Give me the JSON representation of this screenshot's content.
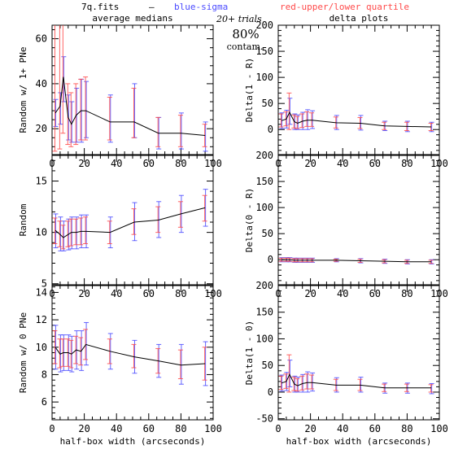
{
  "header": {
    "filename": "7q.fits",
    "dash": "—",
    "blue_label": "blue-sigma",
    "red_label": "red-upper/lower quartile",
    "trials": "20+ trials",
    "percent": "80%",
    "contam": "contam."
  },
  "colors": {
    "blue": "#4a4aff",
    "red": "#ff4a4a",
    "line": "#000000",
    "purple": "#9a4ad0"
  },
  "chart_data": [
    {
      "type": "line",
      "id": "p00",
      "title": "average medians",
      "xlabel": "",
      "ylabel": "Random w/ 1+ PNe",
      "xlim": [
        0,
        100
      ],
      "ylim": [
        8.5,
        66
      ],
      "xticks": [
        0,
        20,
        40,
        60,
        80,
        100
      ],
      "yticks": [
        20,
        40,
        60
      ],
      "x": [
        2,
        5,
        7,
        10,
        12,
        15,
        18,
        21,
        36,
        51,
        66,
        80,
        95
      ],
      "y": [
        27,
        30,
        43,
        25,
        22,
        26,
        28,
        28,
        23,
        23,
        18,
        18,
        17
      ],
      "blue": [
        [
          21,
          33
        ],
        [
          22,
          36
        ],
        [
          32,
          52
        ],
        [
          15,
          35
        ],
        [
          14,
          32
        ],
        [
          14,
          38
        ],
        [
          14,
          42
        ],
        [
          16,
          41
        ],
        [
          14,
          35
        ],
        [
          16,
          40
        ],
        [
          11,
          25
        ],
        [
          11,
          27
        ],
        [
          10,
          23
        ]
      ],
      "red": [
        [
          10,
          66
        ],
        [
          11,
          66
        ],
        [
          18,
          66
        ],
        [
          13,
          40
        ],
        [
          12,
          36
        ],
        [
          13,
          40
        ],
        [
          15,
          42
        ],
        [
          15,
          43
        ],
        [
          15,
          34
        ],
        [
          16,
          38
        ],
        [
          12,
          25
        ],
        [
          12,
          26
        ],
        [
          12,
          22
        ]
      ]
    },
    {
      "type": "line",
      "id": "p10",
      "title": "",
      "xlabel": "",
      "ylabel": "Random",
      "xlim": [
        0,
        100
      ],
      "ylim": [
        4.9,
        17.5
      ],
      "xticks": [
        0,
        20,
        40,
        60,
        80,
        100
      ],
      "yticks": [
        5,
        10,
        15
      ],
      "x": [
        2,
        5,
        7,
        10,
        12,
        15,
        18,
        21,
        36,
        51,
        66,
        80,
        95
      ],
      "y": [
        10.2,
        9.8,
        9.5,
        9.8,
        10.0,
        10.0,
        10.1,
        10.1,
        10.0,
        11.0,
        11.2,
        11.8,
        12.4
      ],
      "blue": [
        [
          8.5,
          11.8
        ],
        [
          8.2,
          11.5
        ],
        [
          8.2,
          11.1
        ],
        [
          8.3,
          11.3
        ],
        [
          8.4,
          11.5
        ],
        [
          8.4,
          11.5
        ],
        [
          8.5,
          11.7
        ],
        [
          8.5,
          11.7
        ],
        [
          8.5,
          11.5
        ],
        [
          9.2,
          12.9
        ],
        [
          9.5,
          13.0
        ],
        [
          10.0,
          13.6
        ],
        [
          10.6,
          14.2
        ]
      ],
      "red": [
        [
          8.9,
          11.4
        ],
        [
          8.6,
          11.1
        ],
        [
          8.4,
          10.7
        ],
        [
          8.6,
          11.1
        ],
        [
          8.7,
          11.3
        ],
        [
          8.8,
          11.3
        ],
        [
          8.8,
          11.4
        ],
        [
          8.9,
          11.5
        ],
        [
          8.9,
          11.1
        ],
        [
          9.8,
          12.3
        ],
        [
          10.0,
          12.5
        ],
        [
          10.5,
          13.0
        ],
        [
          11.1,
          13.6
        ]
      ]
    },
    {
      "type": "line",
      "id": "p20",
      "title": "",
      "xlabel": "half-box width (arcseconds)",
      "ylabel": "Random w/ 0 PNe",
      "xlim": [
        0,
        100
      ],
      "ylim": [
        4.7,
        14.5
      ],
      "xticks": [
        0,
        20,
        40,
        60,
        80,
        100
      ],
      "yticks": [
        6,
        8,
        10,
        12,
        14
      ],
      "x": [
        2,
        5,
        7,
        10,
        12,
        15,
        18,
        21,
        36,
        51,
        66,
        80,
        95
      ],
      "y": [
        10.0,
        9.5,
        9.6,
        9.6,
        9.5,
        9.8,
        9.7,
        10.2,
        9.7,
        9.3,
        9.0,
        8.7,
        8.8
      ],
      "blue": [
        [
          8.4,
          11.6
        ],
        [
          8.2,
          10.9
        ],
        [
          8.3,
          10.9
        ],
        [
          8.3,
          10.9
        ],
        [
          8.2,
          10.8
        ],
        [
          8.4,
          11.2
        ],
        [
          8.3,
          11.2
        ],
        [
          8.7,
          11.8
        ],
        [
          8.4,
          11.0
        ],
        [
          8.1,
          10.5
        ],
        [
          7.8,
          10.2
        ],
        [
          7.3,
          10.2
        ],
        [
          7.2,
          10.4
        ]
      ],
      "red": [
        [
          8.8,
          11.2
        ],
        [
          8.5,
          10.6
        ],
        [
          8.6,
          10.6
        ],
        [
          8.6,
          10.6
        ],
        [
          8.5,
          10.5
        ],
        [
          8.8,
          10.8
        ],
        [
          8.7,
          10.7
        ],
        [
          9.1,
          11.3
        ],
        [
          8.8,
          10.6
        ],
        [
          8.5,
          10.2
        ],
        [
          8.1,
          9.9
        ],
        [
          7.7,
          9.8
        ],
        [
          7.6,
          10.0
        ]
      ]
    },
    {
      "type": "line",
      "id": "p01",
      "title": "delta plots",
      "xlabel": "",
      "ylabel": "Delta(1 - R)",
      "xlim": [
        0,
        100
      ],
      "ylim": [
        -48,
        200
      ],
      "xticks": [
        0,
        20,
        40,
        60,
        80,
        100
      ],
      "yticks": [
        0,
        50,
        100,
        150,
        200
      ],
      "x": [
        2,
        5,
        7,
        10,
        12,
        15,
        18,
        21,
        36,
        51,
        66,
        80,
        95
      ],
      "y": [
        17,
        20,
        33,
        15,
        12,
        16,
        18,
        18,
        13,
        12,
        7,
        6,
        5
      ],
      "blue": [
        [
          2,
          32
        ],
        [
          3,
          37
        ],
        [
          10,
          60
        ],
        [
          0,
          30
        ],
        [
          0,
          28
        ],
        [
          0,
          33
        ],
        [
          0,
          38
        ],
        [
          2,
          36
        ],
        [
          0,
          27
        ],
        [
          -1,
          27
        ],
        [
          -2,
          16
        ],
        [
          -4,
          16
        ],
        [
          -4,
          14
        ]
      ],
      "red": [
        [
          5,
          30
        ],
        [
          7,
          34
        ],
        [
          0,
          70
        ],
        [
          3,
          28
        ],
        [
          2,
          25
        ],
        [
          4,
          30
        ],
        [
          6,
          34
        ],
        [
          6,
          32
        ],
        [
          3,
          24
        ],
        [
          2,
          23
        ],
        [
          0,
          14
        ],
        [
          -2,
          14
        ],
        [
          -2,
          12
        ]
      ]
    },
    {
      "type": "line",
      "id": "p11",
      "title": "",
      "xlabel": "",
      "ylabel": "Delta(0 - R)",
      "xlim": [
        0,
        100
      ],
      "ylim": [
        -48,
        200
      ],
      "xticks": [
        0,
        20,
        40,
        60,
        80,
        100
      ],
      "yticks": [
        0,
        50,
        100,
        150,
        200
      ],
      "x": [
        2,
        5,
        7,
        10,
        12,
        15,
        18,
        21,
        36,
        51,
        66,
        80,
        95
      ],
      "y": [
        0,
        0,
        0,
        -1,
        -1,
        -1,
        -1,
        -1,
        -1,
        -2,
        -3,
        -4,
        -4
      ],
      "blue": [
        [
          -4,
          4
        ],
        [
          -4,
          4
        ],
        [
          -4,
          4
        ],
        [
          -5,
          3
        ],
        [
          -5,
          3
        ],
        [
          -5,
          3
        ],
        [
          -5,
          3
        ],
        [
          -5,
          3
        ],
        [
          -4,
          2
        ],
        [
          -6,
          2
        ],
        [
          -7,
          1
        ],
        [
          -8,
          0
        ],
        [
          -8,
          0
        ]
      ],
      "red": [
        [
          -3,
          3
        ],
        [
          -3,
          3
        ],
        [
          -3,
          3
        ],
        [
          -4,
          2
        ],
        [
          -4,
          2
        ],
        [
          -4,
          2
        ],
        [
          -4,
          2
        ],
        [
          -4,
          2
        ],
        [
          -3,
          1
        ],
        [
          -5,
          1
        ],
        [
          -6,
          0
        ],
        [
          -7,
          -1
        ],
        [
          -7,
          -1
        ]
      ]
    },
    {
      "type": "line",
      "id": "p21",
      "title": "",
      "xlabel": "half-box width (arcseconds)",
      "ylabel": "Delta(1 - 0)",
      "xlim": [
        0,
        100
      ],
      "ylim": [
        -52,
        200
      ],
      "xticks": [
        0,
        20,
        40,
        60,
        80,
        100
      ],
      "yticks": [
        -50,
        0,
        50,
        100,
        150,
        200
      ],
      "x": [
        2,
        5,
        7,
        10,
        12,
        15,
        18,
        21,
        36,
        51,
        66,
        80,
        95
      ],
      "y": [
        17,
        20,
        33,
        15,
        12,
        16,
        18,
        18,
        13,
        13,
        8,
        8,
        8
      ],
      "blue": [
        [
          2,
          32
        ],
        [
          3,
          37
        ],
        [
          10,
          60
        ],
        [
          0,
          30
        ],
        [
          0,
          28
        ],
        [
          0,
          33
        ],
        [
          0,
          38
        ],
        [
          2,
          36
        ],
        [
          0,
          27
        ],
        [
          0,
          28
        ],
        [
          -2,
          17
        ],
        [
          -2,
          17
        ],
        [
          -3,
          16
        ]
      ],
      "red": [
        [
          5,
          30
        ],
        [
          7,
          34
        ],
        [
          0,
          70
        ],
        [
          3,
          28
        ],
        [
          2,
          25
        ],
        [
          4,
          30
        ],
        [
          6,
          34
        ],
        [
          6,
          32
        ],
        [
          3,
          24
        ],
        [
          3,
          24
        ],
        [
          1,
          15
        ],
        [
          1,
          15
        ],
        [
          0,
          14
        ]
      ]
    }
  ]
}
